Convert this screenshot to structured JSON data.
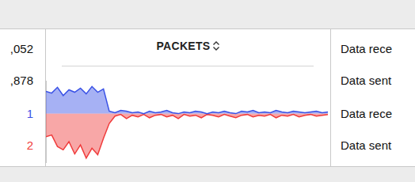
{
  "column_header": "PACKETS",
  "left_column": [
    ",052",
    ",878",
    1,
    2
  ],
  "right_column": [
    "Data rece",
    "Data sent",
    "Data rece",
    "Data sent"
  ],
  "chart_data": {
    "type": "line",
    "categories": [
      null,
      null,
      null,
      null,
      null,
      null,
      null,
      null,
      null,
      null,
      null,
      null,
      null,
      null,
      null,
      null,
      null,
      null,
      null,
      null,
      null,
      null,
      null,
      null,
      null,
      null,
      null,
      null,
      null,
      null,
      null,
      null,
      null,
      null,
      null,
      null,
      null,
      null,
      null,
      null,
      null,
      null,
      null,
      null,
      null,
      null,
      null,
      null,
      null,
      null
    ],
    "series": [
      {
        "color": "#3a52e6",
        "values": [
          27,
          25,
          32,
          22,
          29,
          26,
          31,
          24,
          33,
          26,
          30,
          3,
          1,
          4,
          3,
          1,
          2,
          0,
          3,
          1,
          2,
          4,
          1,
          0,
          2,
          1,
          3,
          2,
          0,
          2,
          1,
          3,
          1,
          0,
          3,
          2,
          4,
          1,
          2,
          1,
          4,
          2,
          1,
          3,
          2,
          1,
          2,
          3,
          1,
          2
        ]
      },
      {
        "color": "#f03c3c",
        "values": [
          -28,
          -26,
          -40,
          -44,
          -34,
          -49,
          -38,
          -54,
          -42,
          -50,
          -30,
          -12,
          -3,
          -1,
          -6,
          -2,
          -4,
          -1,
          -5,
          -2,
          -1,
          -4,
          -2,
          -6,
          -1,
          -3,
          -2,
          -5,
          -1,
          -2,
          -4,
          -1,
          -3,
          -5,
          -2,
          -1,
          -4,
          -2,
          -3,
          -1,
          -5,
          -2,
          -3,
          -1,
          -4,
          -2,
          -1,
          -3,
          -2,
          -1
        ]
      }
    ],
    "ylim": [
      -60,
      40
    ],
    "grid": false,
    "tick_labels": false
  }
}
